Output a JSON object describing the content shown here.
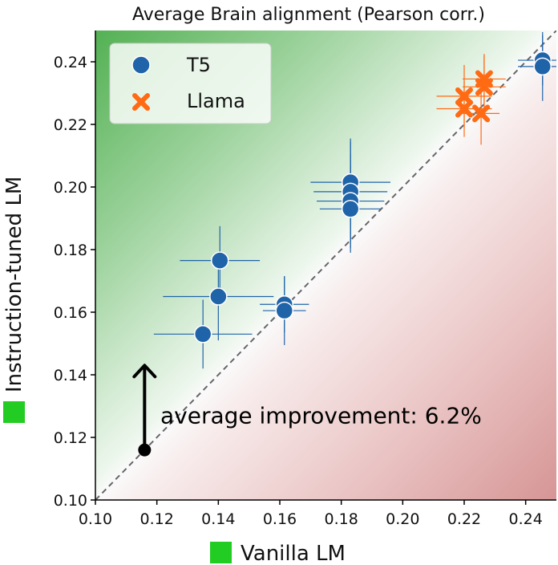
{
  "chart_data": {
    "type": "scatter",
    "title": "Average Brain alignment (Pearson corr.)",
    "xlabel": "Vanilla LM",
    "ylabel": "Instruction-tuned LM",
    "xlim": [
      0.1,
      0.25
    ],
    "ylim": [
      0.1,
      0.25
    ],
    "xticks": [
      "0.10",
      "0.12",
      "0.14",
      "0.16",
      "0.18",
      "0.20",
      "0.22",
      "0.24"
    ],
    "yticks": [
      "0.10",
      "0.12",
      "0.14",
      "0.16",
      "0.18",
      "0.20",
      "0.22",
      "0.24"
    ],
    "grid": false,
    "legend_position": "top-left",
    "background": "gradient: green above diagonal, red below diagonal",
    "reference_line": "y = x (dashed gray)",
    "label_marker_color": "#22cc22",
    "series": [
      {
        "name": "T5",
        "marker": "circle",
        "color": "#1f63a8",
        "points": [
          {
            "x": 0.135,
            "y": 0.153,
            "xerr": 0.016,
            "yerr": 0.011
          },
          {
            "x": 0.14,
            "y": 0.165,
            "xerr": 0.018,
            "yerr": 0.014
          },
          {
            "x": 0.1405,
            "y": 0.1765,
            "xerr": 0.013,
            "yerr": 0.011
          },
          {
            "x": 0.1615,
            "y": 0.1625,
            "xerr": 0.008,
            "yerr": 0.009
          },
          {
            "x": 0.1615,
            "y": 0.1605,
            "xerr": 0.007,
            "yerr": 0.011
          },
          {
            "x": 0.183,
            "y": 0.2015,
            "xerr": 0.013,
            "yerr": 0.014
          },
          {
            "x": 0.183,
            "y": 0.1985,
            "xerr": 0.012,
            "yerr": 0.016
          },
          {
            "x": 0.183,
            "y": 0.1955,
            "xerr": 0.011,
            "yerr": 0.015
          },
          {
            "x": 0.183,
            "y": 0.193,
            "xerr": 0.01,
            "yerr": 0.014
          },
          {
            "x": 0.2455,
            "y": 0.2405,
            "xerr": 0.008,
            "yerr": 0.008
          },
          {
            "x": 0.2455,
            "y": 0.2385,
            "xerr": 0.008,
            "yerr": 0.011
          }
        ]
      },
      {
        "name": "Llama",
        "marker": "x",
        "color": "#ff6a13",
        "points": [
          {
            "x": 0.22,
            "y": 0.229,
            "xerr": 0.009,
            "yerr": 0.01
          },
          {
            "x": 0.22,
            "y": 0.225,
            "xerr": 0.009,
            "yerr": 0.009
          },
          {
            "x": 0.2265,
            "y": 0.2345,
            "xerr": 0.007,
            "yerr": 0.008
          },
          {
            "x": 0.2265,
            "y": 0.232,
            "xerr": 0.007,
            "yerr": 0.01
          },
          {
            "x": 0.2255,
            "y": 0.2235,
            "xerr": 0.006,
            "yerr": 0.01
          }
        ]
      }
    ],
    "annotation": {
      "text": "average improvement: 6.2%",
      "arrow_from": {
        "x": 0.116,
        "y": 0.116
      },
      "arrow_to": {
        "x": 0.116,
        "y": 0.143
      }
    }
  }
}
